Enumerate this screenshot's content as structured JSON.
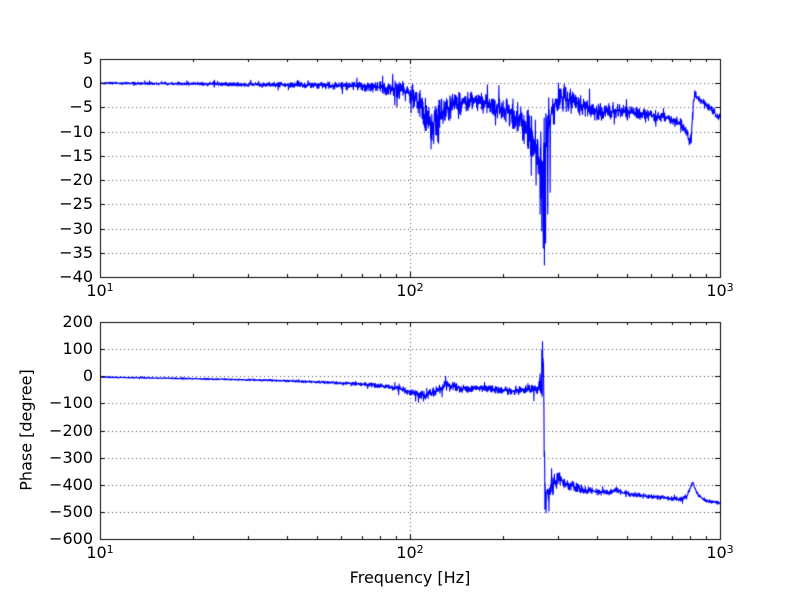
{
  "figure": {
    "background": "#ffffff",
    "frame_color": "#000000",
    "grid_color": "#000000"
  },
  "chart_data": [
    {
      "type": "line",
      "id": "magnitude",
      "title": "",
      "xlabel": "",
      "ylabel": "",
      "xscale": "log",
      "xlim": [
        10,
        1000
      ],
      "ylim": [
        -40,
        5
      ],
      "grid": true,
      "legend": "none",
      "yticks": {
        "values": [
          5,
          0,
          -5,
          -10,
          -15,
          -20,
          -25,
          -30,
          -35,
          -40
        ],
        "labels": [
          "5",
          "0",
          "−5",
          "−10",
          "−15",
          "−20",
          "−25",
          "−30",
          "−35",
          "−40"
        ]
      },
      "xticks": [
        {
          "value": 10,
          "base": "10",
          "exp": "1"
        },
        {
          "value": 100,
          "base": "10",
          "exp": "2"
        },
        {
          "value": 1000,
          "base": "10",
          "exp": "3"
        }
      ],
      "series": [
        {
          "name": "magnitude-response",
          "color": "#0000ff",
          "line_width": 1.1,
          "points": [
            [
              10,
              0
            ],
            [
              14,
              -0.05
            ],
            [
              20,
              -0.1
            ],
            [
              28,
              -0.2
            ],
            [
              40,
              -0.3
            ],
            [
              50,
              -0.4
            ],
            [
              60,
              -0.55
            ],
            [
              70,
              -0.7
            ],
            [
              80,
              -0.9
            ],
            [
              90,
              -1.2
            ],
            [
              97,
              -1.6
            ],
            [
              103,
              -2.6
            ],
            [
              108,
              -4.5
            ],
            [
              113,
              -7
            ],
            [
              118,
              -8.3
            ],
            [
              125,
              -6.6
            ],
            [
              132,
              -5.2
            ],
            [
              140,
              -4.4
            ],
            [
              150,
              -4
            ],
            [
              160,
              -3.8
            ],
            [
              170,
              -4
            ],
            [
              180,
              -4.3
            ],
            [
              190,
              -4.8
            ],
            [
              200,
              -5.3
            ],
            [
              210,
              -6.1
            ],
            [
              220,
              -7
            ],
            [
              230,
              -8.2
            ],
            [
              240,
              -9.6
            ],
            [
              250,
              -11.5
            ],
            [
              258,
              -13.5
            ],
            [
              264,
              -15.5
            ],
            [
              268,
              -16.5
            ],
            [
              272,
              -15.5
            ],
            [
              276,
              -11.5
            ],
            [
              281,
              -8.2
            ],
            [
              286,
              -6
            ],
            [
              292,
              -4.6
            ],
            [
              300,
              -3.3
            ],
            [
              310,
              -2.9
            ],
            [
              320,
              -3.2
            ],
            [
              335,
              -3.9
            ],
            [
              350,
              -4.5
            ],
            [
              370,
              -5.1
            ],
            [
              390,
              -5.6
            ],
            [
              410,
              -5.9
            ],
            [
              430,
              -6
            ],
            [
              450,
              -5.7
            ],
            [
              465,
              -5.5
            ],
            [
              480,
              -5.8
            ],
            [
              500,
              -6
            ],
            [
              530,
              -6.2
            ],
            [
              560,
              -6.4
            ],
            [
              600,
              -6.6
            ],
            [
              640,
              -6.9
            ],
            [
              680,
              -7.3
            ],
            [
              720,
              -7.8
            ],
            [
              750,
              -8.4
            ],
            [
              770,
              -9.3
            ],
            [
              785,
              -10.6
            ],
            [
              795,
              -11.9
            ],
            [
              802,
              -12.5
            ],
            [
              808,
              -11
            ],
            [
              815,
              -7.5
            ],
            [
              822,
              -4
            ],
            [
              830,
              -2.3
            ],
            [
              842,
              -2.7
            ],
            [
              860,
              -3.3
            ],
            [
              885,
              -4
            ],
            [
              915,
              -4.8
            ],
            [
              950,
              -5.7
            ],
            [
              975,
              -6.4
            ],
            [
              1000,
              -7.2
            ]
          ],
          "noise_amplitude": [
            [
              10,
              0.15
            ],
            [
              30,
              0.25
            ],
            [
              60,
              0.5
            ],
            [
              80,
              0.8
            ],
            [
              95,
              1.2
            ],
            [
              110,
              2.2
            ],
            [
              122,
              2.2
            ],
            [
              135,
              1.7
            ],
            [
              160,
              1.3
            ],
            [
              200,
              1.5
            ],
            [
              230,
              2.3
            ],
            [
              250,
              3.3
            ],
            [
              262,
              4.6
            ],
            [
              272,
              5
            ],
            [
              282,
              3.6
            ],
            [
              295,
              2.2
            ],
            [
              310,
              1.9
            ],
            [
              340,
              1.5
            ],
            [
              400,
              1.2
            ],
            [
              500,
              0.9
            ],
            [
              600,
              0.7
            ],
            [
              700,
              0.6
            ],
            [
              780,
              0.8
            ],
            [
              815,
              0.9
            ],
            [
              845,
              0.5
            ],
            [
              1000,
              0.45
            ]
          ],
          "spikes": [
            [
              117,
              -13.5
            ],
            [
              123,
              -12
            ],
            [
              246,
              -19
            ],
            [
              255,
              -21
            ],
            [
              263,
              -27
            ],
            [
              266,
              -30.5
            ],
            [
              269,
              -34
            ],
            [
              271.5,
              -37.5
            ],
            [
              274,
              -33
            ],
            [
              278,
              -27
            ],
            [
              283,
              -22.5
            ]
          ]
        }
      ]
    },
    {
      "type": "line",
      "id": "phase",
      "title": "",
      "xlabel": "Frequency [Hz]",
      "ylabel": "Phase [degree]",
      "xscale": "log",
      "xlim": [
        10,
        1000
      ],
      "ylim": [
        -600,
        200
      ],
      "grid": true,
      "legend": "none",
      "yticks": {
        "values": [
          200,
          100,
          0,
          -100,
          -200,
          -300,
          -400,
          -500,
          -600
        ],
        "labels": [
          "200",
          "100",
          "0",
          "−100",
          "−200",
          "−300",
          "−400",
          "−500",
          "−600"
        ]
      },
      "xticks": [
        {
          "value": 10,
          "base": "10",
          "exp": "1"
        },
        {
          "value": 100,
          "base": "10",
          "exp": "2"
        },
        {
          "value": 1000,
          "base": "10",
          "exp": "3"
        }
      ],
      "series": [
        {
          "name": "phase-response",
          "color": "#0000ff",
          "line_width": 1.1,
          "points": [
            [
              10,
              -3
            ],
            [
              14,
              -6
            ],
            [
              20,
              -9
            ],
            [
              27,
              -12
            ],
            [
              35,
              -15
            ],
            [
              45,
              -19
            ],
            [
              55,
              -23
            ],
            [
              65,
              -27
            ],
            [
              75,
              -32
            ],
            [
              85,
              -39
            ],
            [
              95,
              -50
            ],
            [
              102,
              -60
            ],
            [
              108,
              -68
            ],
            [
              112,
              -70
            ],
            [
              118,
              -60
            ],
            [
              124,
              -48
            ],
            [
              130,
              -34
            ],
            [
              136,
              -35
            ],
            [
              143,
              -42
            ],
            [
              150,
              -47
            ],
            [
              160,
              -45
            ],
            [
              172,
              -44
            ],
            [
              185,
              -48
            ],
            [
              200,
              -52
            ],
            [
              215,
              -54
            ],
            [
              230,
              -52
            ],
            [
              242,
              -50
            ],
            [
              252,
              -46
            ],
            [
              258,
              -41
            ],
            [
              262,
              -38
            ],
            [
              265,
              -30
            ],
            [
              267,
              -15
            ],
            [
              268,
              35
            ],
            [
              268.8,
              110
            ],
            [
              269.4,
              55
            ],
            [
              270.2,
              -90
            ],
            [
              271,
              -260
            ],
            [
              272,
              -400
            ],
            [
              273.5,
              -448
            ],
            [
              275.5,
              -428
            ],
            [
              278,
              -415
            ],
            [
              282,
              -422
            ],
            [
              286,
              -410
            ],
            [
              291,
              -396
            ],
            [
              297,
              -386
            ],
            [
              304,
              -382
            ],
            [
              311,
              -388
            ],
            [
              320,
              -396
            ],
            [
              331,
              -403
            ],
            [
              343,
              -409
            ],
            [
              356,
              -415
            ],
            [
              372,
              -420
            ],
            [
              392,
              -424
            ],
            [
              412,
              -427
            ],
            [
              432,
              -429
            ],
            [
              450,
              -424
            ],
            [
              464,
              -421
            ],
            [
              480,
              -427
            ],
            [
              500,
              -432
            ],
            [
              530,
              -437
            ],
            [
              565,
              -441
            ],
            [
              600,
              -444
            ],
            [
              640,
              -447
            ],
            [
              680,
              -450
            ],
            [
              712,
              -452
            ],
            [
              742,
              -453
            ],
            [
              766,
              -450
            ],
            [
              780,
              -444
            ],
            [
              794,
              -427
            ],
            [
              806,
              -402
            ],
            [
              814,
              -391
            ],
            [
              821,
              -397
            ],
            [
              830,
              -412
            ],
            [
              843,
              -430
            ],
            [
              858,
              -443
            ],
            [
              880,
              -452
            ],
            [
              910,
              -459
            ],
            [
              950,
              -464
            ],
            [
              1000,
              -468
            ]
          ],
          "noise_amplitude": [
            [
              10,
              1
            ],
            [
              30,
              1.8
            ],
            [
              60,
              3
            ],
            [
              80,
              5
            ],
            [
              100,
              8
            ],
            [
              115,
              10
            ],
            [
              130,
              11
            ],
            [
              150,
              9
            ],
            [
              180,
              8
            ],
            [
              210,
              9
            ],
            [
              235,
              10
            ],
            [
              250,
              13
            ],
            [
              259,
              20
            ],
            [
              264,
              35
            ],
            [
              268,
              55
            ],
            [
              271,
              60
            ],
            [
              274,
              40
            ],
            [
              280,
              30
            ],
            [
              288,
              24
            ],
            [
              297,
              20
            ],
            [
              310,
              15
            ],
            [
              340,
              11
            ],
            [
              380,
              8
            ],
            [
              430,
              7
            ],
            [
              500,
              6
            ],
            [
              600,
              5
            ],
            [
              700,
              5
            ],
            [
              780,
              6
            ],
            [
              815,
              5
            ],
            [
              850,
              4
            ],
            [
              1000,
              3.5
            ]
          ],
          "spikes": [
            [
              266.3,
              96
            ],
            [
              267.4,
              128
            ],
            [
              272.3,
              -490
            ],
            [
              274.8,
              -503
            ],
            [
              280.8,
              -497
            ],
            [
              286,
              -340
            ]
          ]
        }
      ]
    }
  ],
  "seed": 1234567
}
